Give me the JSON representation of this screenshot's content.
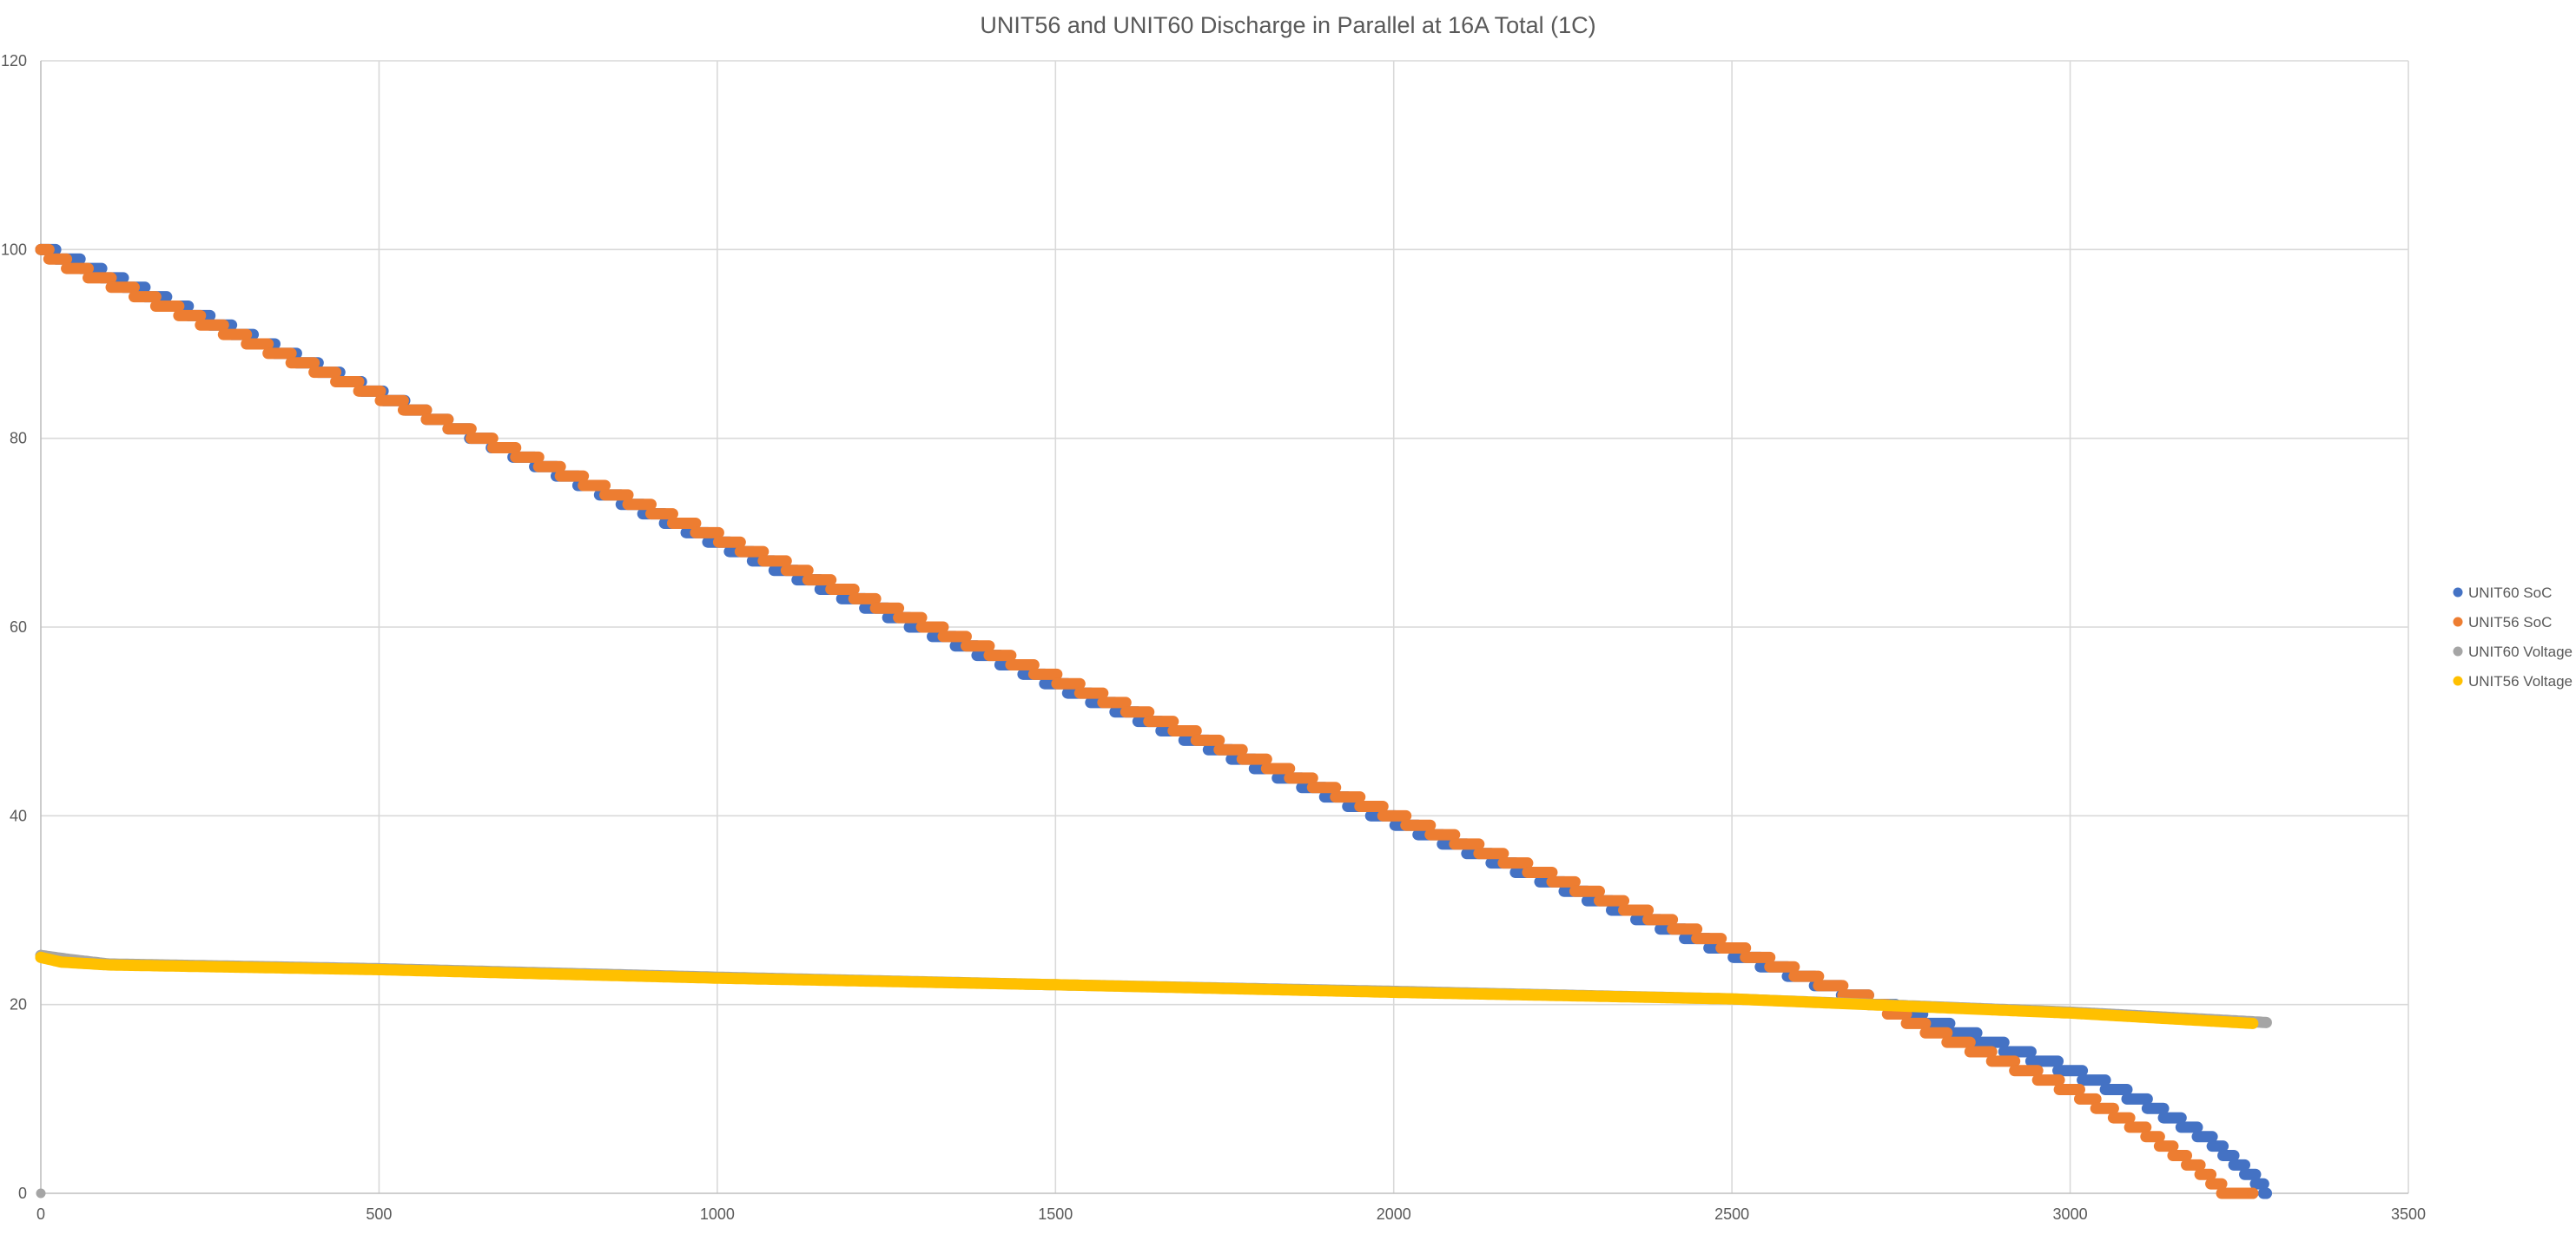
{
  "chart_data": {
    "type": "scatter",
    "title": "UNIT56 and UNIT60 Discharge in Parallel at 16A Total (1C)",
    "xlabel": "",
    "ylabel": "",
    "xlim": [
      0,
      3500
    ],
    "ylim": [
      0,
      120
    ],
    "x_ticks": [
      "0",
      "500",
      "1000",
      "1500",
      "2000",
      "2500",
      "3000",
      "3500"
    ],
    "y_ticks": [
      "0",
      "20",
      "40",
      "60",
      "80",
      "100",
      "120"
    ],
    "grid": true,
    "legend_position": "right",
    "series": [
      {
        "name": "UNIT60 SoC",
        "color": "#4472C4",
        "step_levels": true,
        "points": [
          [
            0,
            100
          ],
          [
            40,
            99
          ],
          [
            1000,
            69
          ],
          [
            1500,
            54
          ],
          [
            2000,
            39.5
          ],
          [
            2500,
            25.5
          ],
          [
            2700,
            20.5
          ],
          [
            2800,
            18
          ],
          [
            2900,
            15.5
          ],
          [
            3000,
            13
          ],
          [
            3100,
            10
          ],
          [
            3200,
            6
          ],
          [
            3250,
            3
          ],
          [
            3280,
            1
          ],
          [
            3290,
            0
          ]
        ]
      },
      {
        "name": "UNIT56 SoC",
        "color": "#ED7D31",
        "step_levels": true,
        "points": [
          [
            0,
            100
          ],
          [
            20,
            99
          ],
          [
            1000,
            69.5
          ],
          [
            1500,
            54.5
          ],
          [
            2000,
            40
          ],
          [
            2500,
            26
          ],
          [
            2700,
            20.5
          ],
          [
            2800,
            17
          ],
          [
            2900,
            14
          ],
          [
            3000,
            11
          ],
          [
            3100,
            7
          ],
          [
            3150,
            4.5
          ],
          [
            3200,
            2
          ],
          [
            3230,
            0
          ],
          [
            3270,
            0
          ]
        ]
      },
      {
        "name": "UNIT60 Voltage",
        "color": "#A5A5A5",
        "step_levels": false,
        "points": [
          [
            0,
            25.2
          ],
          [
            40,
            24.8
          ],
          [
            100,
            24.3
          ],
          [
            500,
            23.8
          ],
          [
            1000,
            22.9
          ],
          [
            1500,
            22.1
          ],
          [
            2000,
            21.4
          ],
          [
            2500,
            20.6
          ],
          [
            3000,
            19.2
          ],
          [
            3290,
            18.1
          ]
        ]
      },
      {
        "name": "UNIT56 Voltage",
        "color": "#FFC000",
        "step_levels": false,
        "points": [
          [
            0,
            25
          ],
          [
            30,
            24.5
          ],
          [
            100,
            24.2
          ],
          [
            500,
            23.7
          ],
          [
            1000,
            22.8
          ],
          [
            1500,
            22.1
          ],
          [
            2000,
            21.3
          ],
          [
            2500,
            20.6
          ],
          [
            3000,
            19.1
          ],
          [
            3270,
            18
          ]
        ]
      }
    ]
  }
}
